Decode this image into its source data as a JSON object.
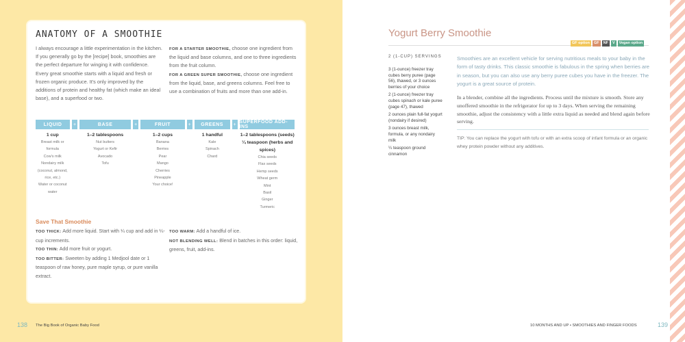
{
  "left_page": {
    "heading": "ANATOMY OF A SMOOTHIE",
    "intro": "I always encourage a little experimentation in the kitchen. If you generally go by the [recipe] book, smoothies are the perfect departure for winging it with confidence. Every great smoothie starts with a liquid and fresh or frozen organic produce. It's only improved by the additions of protein and healthy fat (which make an ideal base), and a superfood or two.",
    "starter_label": "FOR A STARTER SMOOTHIE,",
    "starter_text": " choose one ingredient from the liquid and base columns, and one to three ingredients from the fruit column.",
    "green_label": "FOR A GREEN SUPER SMOOTHIE,",
    "green_text": " choose one ingredient from the liquid, base, and greens columns. Feel free to use a combination of fruits and more than one add-in.",
    "table": {
      "plus": "+",
      "columns": [
        {
          "header": "LIQUID",
          "amount": "1 cup",
          "items": [
            "Breast milk or formula",
            "Cow's milk",
            "Nondairy milk (coconut, almond, rice, etc.)",
            "Water or coconut water"
          ]
        },
        {
          "header": "BASE",
          "amount": "1–2 tablespoons",
          "items": [
            "Nut butters",
            "Yogurt or Kefir",
            "Avocado",
            "Tofu"
          ]
        },
        {
          "header": "FRUIT",
          "amount": "1–2 cups",
          "items": [
            "Banana",
            "Berries",
            "Pear",
            "Mango",
            "Cherries",
            "Pineapple",
            "Your choice!"
          ]
        },
        {
          "header": "GREENS",
          "amount": "1 handful",
          "items": [
            "Kale",
            "Spinach",
            "Chard"
          ]
        },
        {
          "header": "SUPERFOOD ADD-INS",
          "amount": "1–2 tablespoons (seeds)",
          "amount2": "¼ teaspoon (herbs and spices)",
          "items": [
            "Chia seeds",
            "Flax seeds",
            "Hemp seeds",
            "Wheat germ",
            "Mint",
            "Basil",
            "Ginger",
            "Turmeric"
          ]
        }
      ]
    },
    "save": {
      "title": "Save That Smoothie",
      "tips": [
        {
          "label": "TOO THICK:",
          "text": " Add more liquid. Start with ¼ cup and add in ¼-cup increments."
        },
        {
          "label": "TOO THIN:",
          "text": " Add more fruit or yogurt."
        },
        {
          "label": "TOO BITTER:",
          "text": " Sweeten by adding 1 Medjool date or 1 teaspoon of raw honey, pure maple syrup, or pure vanilla extract."
        },
        {
          "label": "TOO WARM:",
          "text": " Add a handful of ice."
        },
        {
          "label": "NOT BLENDING WELL:",
          "text": " Blend in batches in this order: liquid, greens, fruit, add-ins."
        }
      ]
    },
    "page_number": "138",
    "running_head": "The Big Book of Organic Baby Food"
  },
  "right_page": {
    "title": "Yogurt Berry Smoothie",
    "badges": [
      {
        "text": "GF option",
        "color": "#f2c65a"
      },
      {
        "text": "GF",
        "color": "#d9906a"
      },
      {
        "text": "NF",
        "color": "#555555"
      },
      {
        "text": "V",
        "color": "#5aa88a"
      },
      {
        "text": "Vegan option",
        "color": "#5aa88a"
      }
    ],
    "servings": "2 (1-CUP) SERVINGS",
    "ingredients": [
      "3 (1-ounce) freezer tray cubes berry puree (page 56), thawed, or 3 ounces berries of your choice",
      "2 (1-ounce) freezer tray cubes spinach or kale puree (page 47), thawed",
      "2 ounces plain full-fat yogurt (nondairy if desired)",
      "3 ounces breast milk, formula, or any nondairy milk",
      "¼ teaspoon ground cinnamon"
    ],
    "intro": "Smoothies are an excellent vehicle for serving nutritious meals to your baby in the form of tasty drinks. This classic smoothie is fabulous in the spring when berries are in season, but you can also use any berry puree cubes you have in the freezer. The yogurt is a great source of protein.",
    "method": "In a blender, combine all the ingredients. Process until the mixture is smooth. Store any unoffered smoothie in the refrigerator for up to 3 days. When serving the remaining smoothie, adjust the consistency with a little extra liquid as needed and blend again before serving.",
    "tip": "TIP: You can replace the yogurt with tofu or with an extra scoop of infant formula or an organic whey protein powder without any additives.",
    "running_head": "10 MONTHS AND UP • SMOOTHIES AND FINGER FOODS",
    "page_number": "139"
  }
}
